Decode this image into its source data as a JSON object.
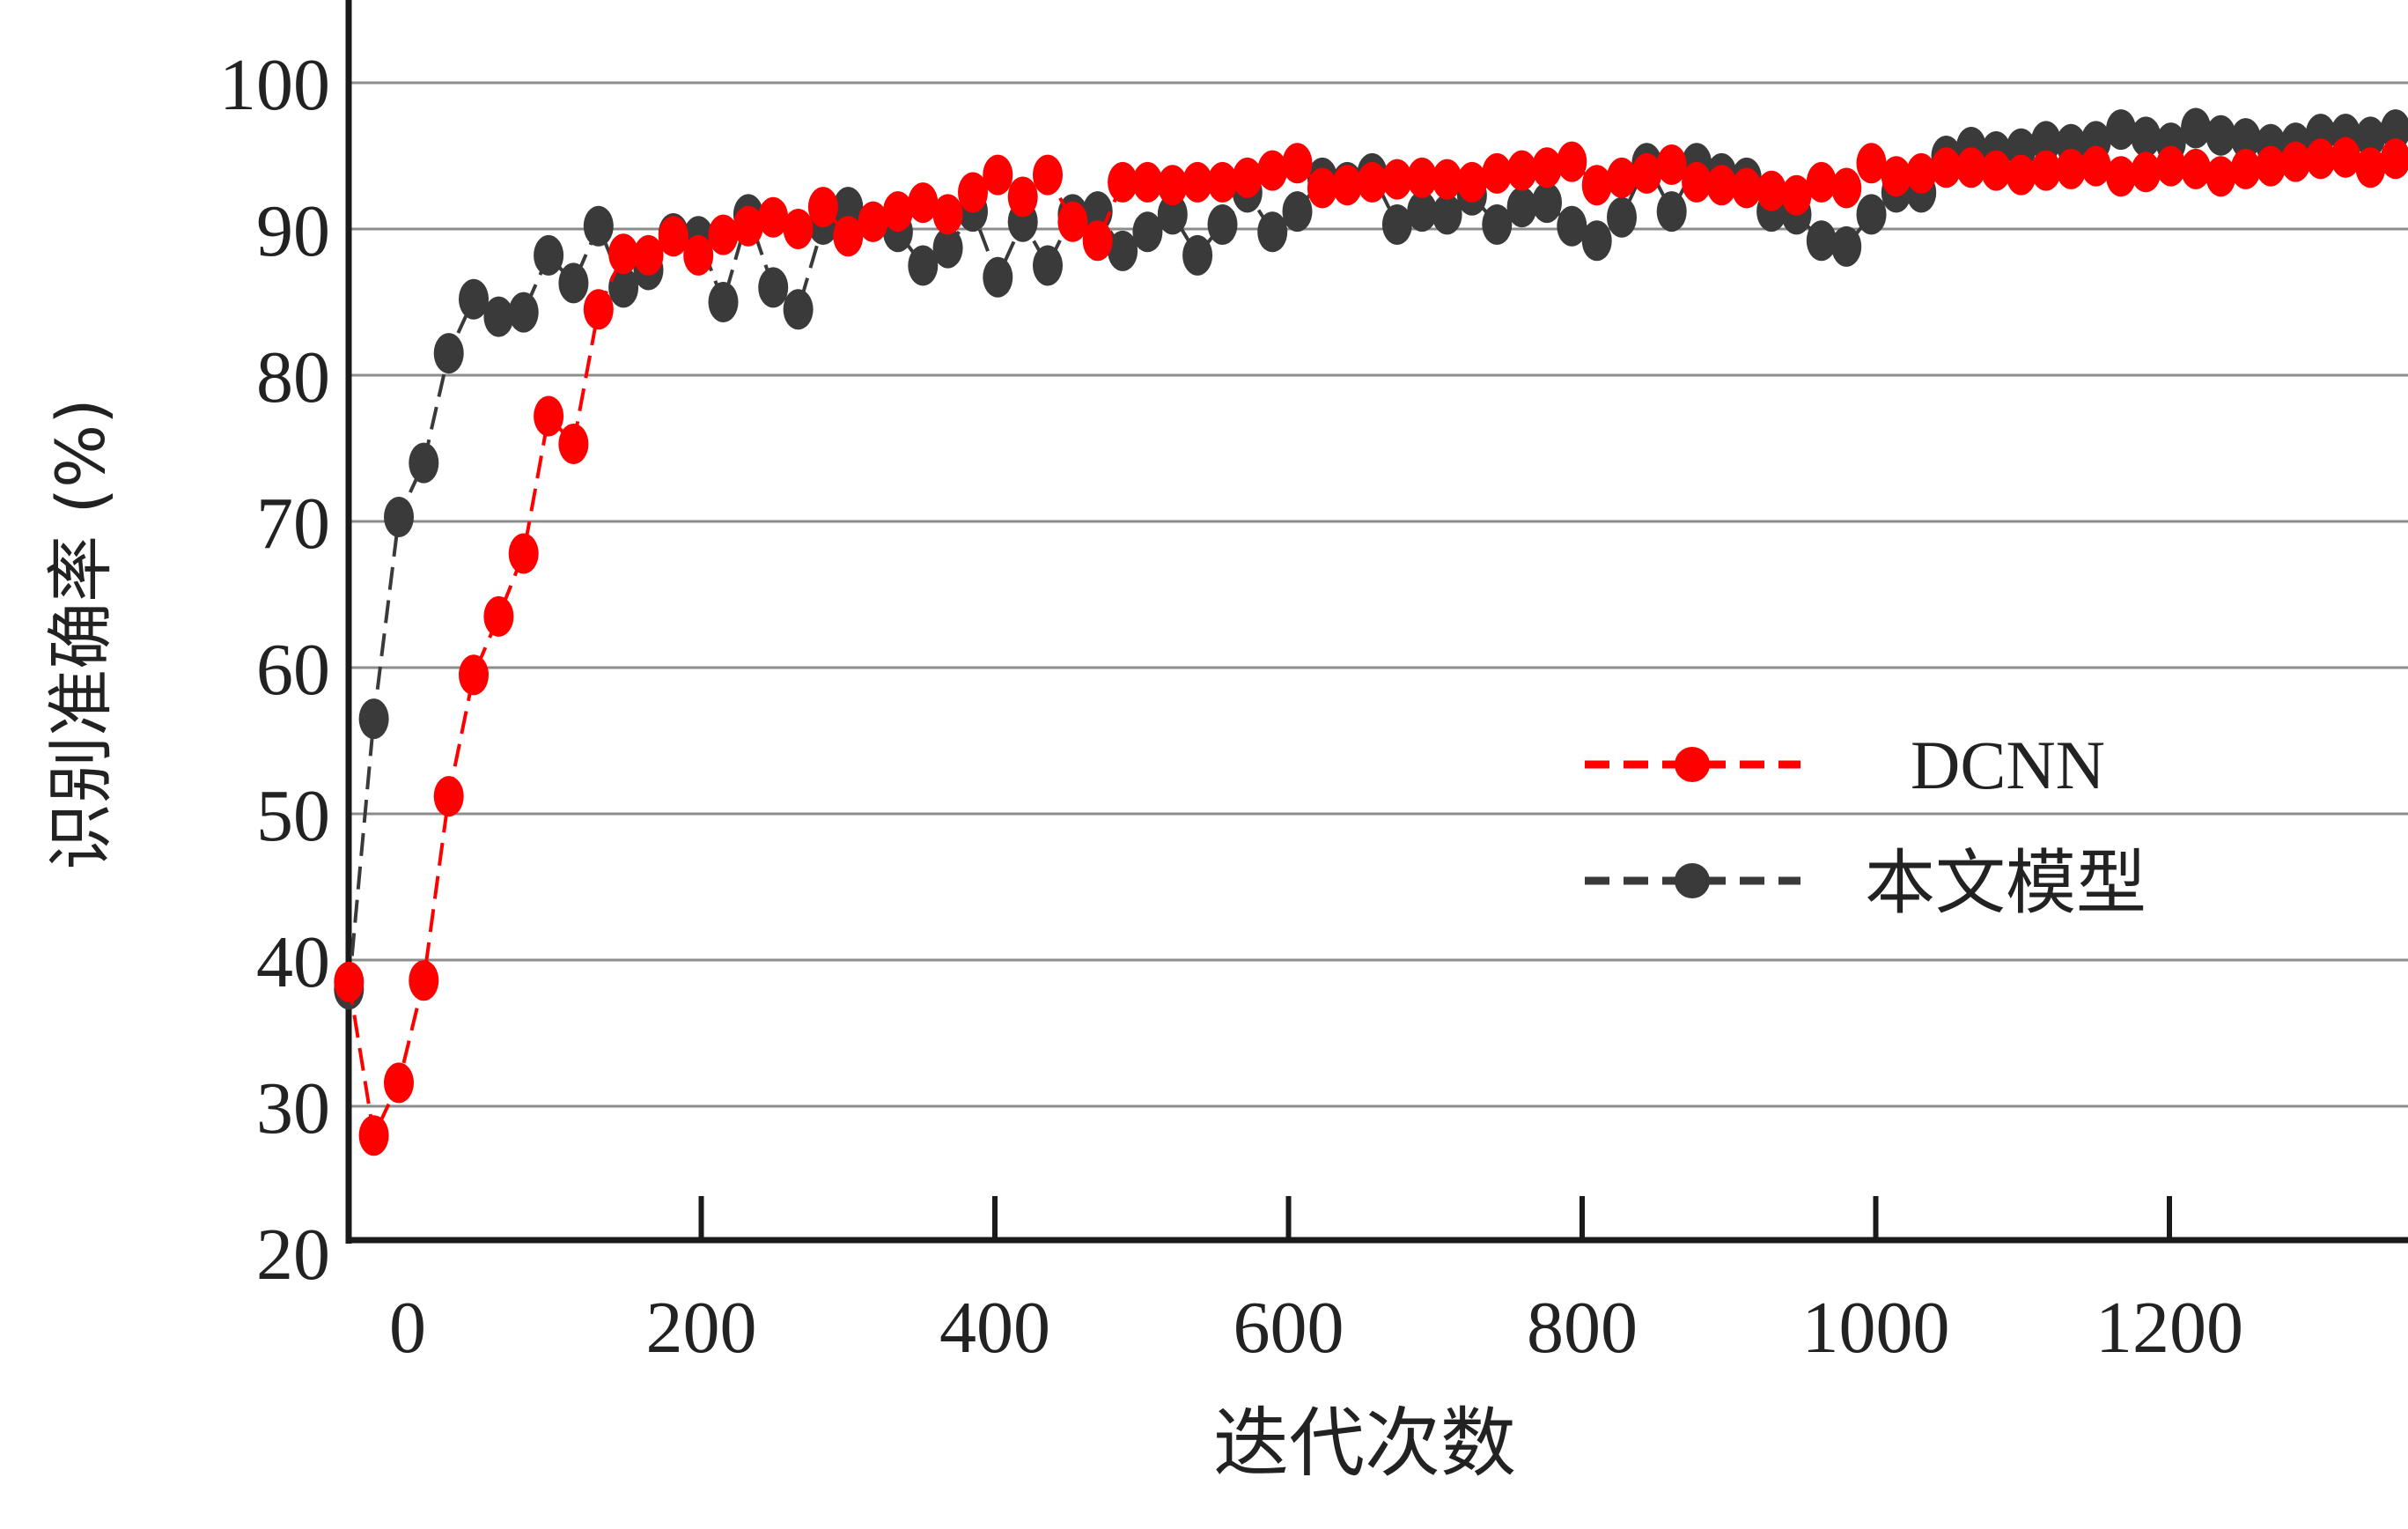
{
  "chart_data": {
    "type": "line",
    "title": "",
    "xlabel": "迭代次数",
    "ylabel": "识别准确率 (%)",
    "xlim": [
      -50,
      1400
    ],
    "ylim": [
      20,
      100
    ],
    "x_ticks": [
      0,
      200,
      400,
      600,
      800,
      1000,
      1200
    ],
    "y_ticks": [
      20,
      30,
      40,
      50,
      60,
      70,
      80,
      90,
      100
    ],
    "grid": "horizontal",
    "legend_position": "middle-right",
    "series": [
      {
        "name": "DCNN",
        "color": "#ff0000",
        "line_style": "dashed",
        "marker": "circle",
        "x": [
          -40,
          -23,
          -6,
          11,
          28,
          45,
          62,
          79,
          96,
          113,
          130,
          147,
          164,
          181,
          198,
          215,
          232,
          249,
          266,
          283,
          300,
          317,
          334,
          351,
          368,
          385,
          402,
          419,
          436,
          453,
          470,
          487,
          504,
          521,
          538,
          555,
          572,
          589,
          606,
          623,
          640,
          657,
          674,
          691,
          708,
          725,
          742,
          759,
          776,
          793,
          810,
          827,
          844,
          861,
          878,
          895,
          912,
          929,
          946,
          963,
          980,
          997,
          1014,
          1031,
          1048,
          1065,
          1082,
          1099,
          1116,
          1133,
          1150,
          1167,
          1184,
          1201,
          1218,
          1235,
          1252,
          1269,
          1286,
          1303,
          1320,
          1337,
          1354
        ],
        "y": [
          38.5,
          28,
          31.6,
          38.6,
          51.2,
          59.5,
          63.5,
          67.8,
          77.2,
          75.3,
          84.5,
          88.3,
          88.2,
          89.5,
          88.2,
          89.6,
          90.2,
          90.8,
          90,
          91.5,
          89.5,
          90.5,
          91.2,
          91.8,
          91,
          92.5,
          93.7,
          92.2,
          93.7,
          90.5,
          89.2,
          93.2,
          93.2,
          93,
          93.2,
          93.2,
          93.5,
          94,
          94.5,
          92.8,
          93,
          93.2,
          93.4,
          93.5,
          93.4,
          93.2,
          93.8,
          94,
          94.2,
          94.6,
          93,
          93.5,
          93.8,
          94.4,
          93.2,
          93,
          92.8,
          92.6,
          92.3,
          93.2,
          92.8,
          94.5,
          93.6,
          93.8,
          94.2,
          94.2,
          94,
          93.7,
          94,
          94.1,
          94.3,
          93.6,
          93.9,
          94.3,
          94.1,
          93.6,
          94.1,
          94.3,
          94.6,
          94.8,
          94.9,
          94.2,
          94.8
        ]
      },
      {
        "name": "本文模型",
        "color": "#3a3a3a",
        "line_style": "dashed",
        "marker": "circle",
        "x": [
          -40,
          -23,
          -6,
          11,
          28,
          45,
          62,
          79,
          96,
          113,
          130,
          147,
          164,
          181,
          198,
          215,
          232,
          249,
          266,
          283,
          300,
          317,
          334,
          351,
          368,
          385,
          402,
          419,
          436,
          453,
          470,
          487,
          504,
          521,
          538,
          555,
          572,
          589,
          606,
          623,
          640,
          657,
          674,
          691,
          708,
          725,
          742,
          759,
          776,
          793,
          810,
          827,
          844,
          861,
          878,
          895,
          912,
          929,
          946,
          963,
          980,
          997,
          1014,
          1031,
          1048,
          1065,
          1082,
          1099,
          1116,
          1133,
          1150,
          1167,
          1184,
          1201,
          1218,
          1235,
          1252,
          1269,
          1286,
          1303,
          1320,
          1337,
          1354
        ],
        "y": [
          38,
          56.5,
          70.3,
          74,
          81.5,
          85.2,
          84,
          84.3,
          88.2,
          86.3,
          90.2,
          86,
          87.2,
          89.7,
          89.5,
          85,
          91,
          86,
          84.5,
          90.3,
          91.5,
          90.5,
          89.8,
          87.5,
          88.7,
          91.2,
          86.7,
          90.5,
          87.5,
          91,
          91.2,
          88.5,
          89.8,
          91,
          88.2,
          90.3,
          92.5,
          89.8,
          91.2,
          93.5,
          93.2,
          93.8,
          90.3,
          91.2,
          91,
          92.3,
          90.3,
          91.5,
          91.8,
          90.2,
          89.2,
          90.8,
          94.5,
          91.2,
          94.5,
          93.8,
          93.5,
          91.2,
          91,
          89.2,
          88.8,
          91,
          92.5,
          92.5,
          95,
          95.6,
          95.3,
          95.5,
          96,
          95.8,
          96,
          96.8,
          96.3,
          95.9,
          96.9,
          96.4,
          96.2,
          95.8,
          95.9,
          96.5,
          96.5,
          96.3,
          96.8
        ]
      }
    ]
  }
}
